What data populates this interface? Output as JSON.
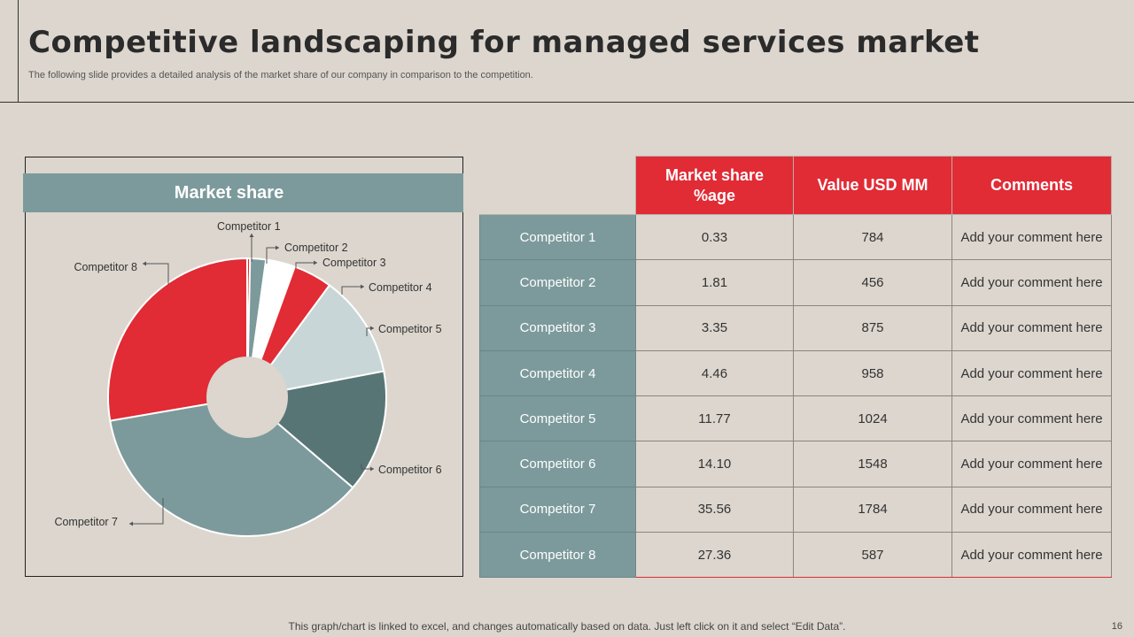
{
  "title": "Competitive landscaping for managed services market",
  "subtitle": "The following slide provides a detailed analysis of the market share of our company in comparison to the competition.",
  "chart_data": {
    "type": "pie",
    "title": "Market share",
    "categories": [
      "Competitor 1",
      "Competitor 2",
      "Competitor 3",
      "Competitor 4",
      "Competitor 5",
      "Competitor 6",
      "Competitor 7",
      "Competitor 8"
    ],
    "values": [
      0.33,
      1.81,
      3.35,
      4.46,
      11.77,
      14.1,
      35.56,
      27.36
    ],
    "colors": [
      "#e12b35",
      "#7c9a9b",
      "#ffffff",
      "#e12b35",
      "#c9d6d7",
      "#587576",
      "#7c9a9b",
      "#e12b35"
    ],
    "donut_hole": true
  },
  "table": {
    "headers": [
      "Market share %age",
      "Value USD MM",
      "Comments"
    ],
    "rows": [
      {
        "name": "Competitor 1",
        "share": "0.33",
        "value": "784",
        "comment": "Add your comment here"
      },
      {
        "name": "Competitor 2",
        "share": "1.81",
        "value": "456",
        "comment": "Add your comment here"
      },
      {
        "name": "Competitor 3",
        "share": "3.35",
        "value": "875",
        "comment": "Add your comment here"
      },
      {
        "name": "Competitor 4",
        "share": "4.46",
        "value": "958",
        "comment": "Add your comment here"
      },
      {
        "name": "Competitor 5",
        "share": "11.77",
        "value": "1024",
        "comment": "Add your comment here"
      },
      {
        "name": "Competitor 6",
        "share": "14.10",
        "value": "1548",
        "comment": "Add your comment here"
      },
      {
        "name": "Competitor 7",
        "share": "35.56",
        "value": "1784",
        "comment": "Add your comment here"
      },
      {
        "name": "Competitor 8",
        "share": "27.36",
        "value": "587",
        "comment": "Add your comment here"
      }
    ]
  },
  "footer": "This graph/chart is linked to excel, and changes automatically based on data. Just left click on it and select “Edit Data”.",
  "page_number": "16"
}
